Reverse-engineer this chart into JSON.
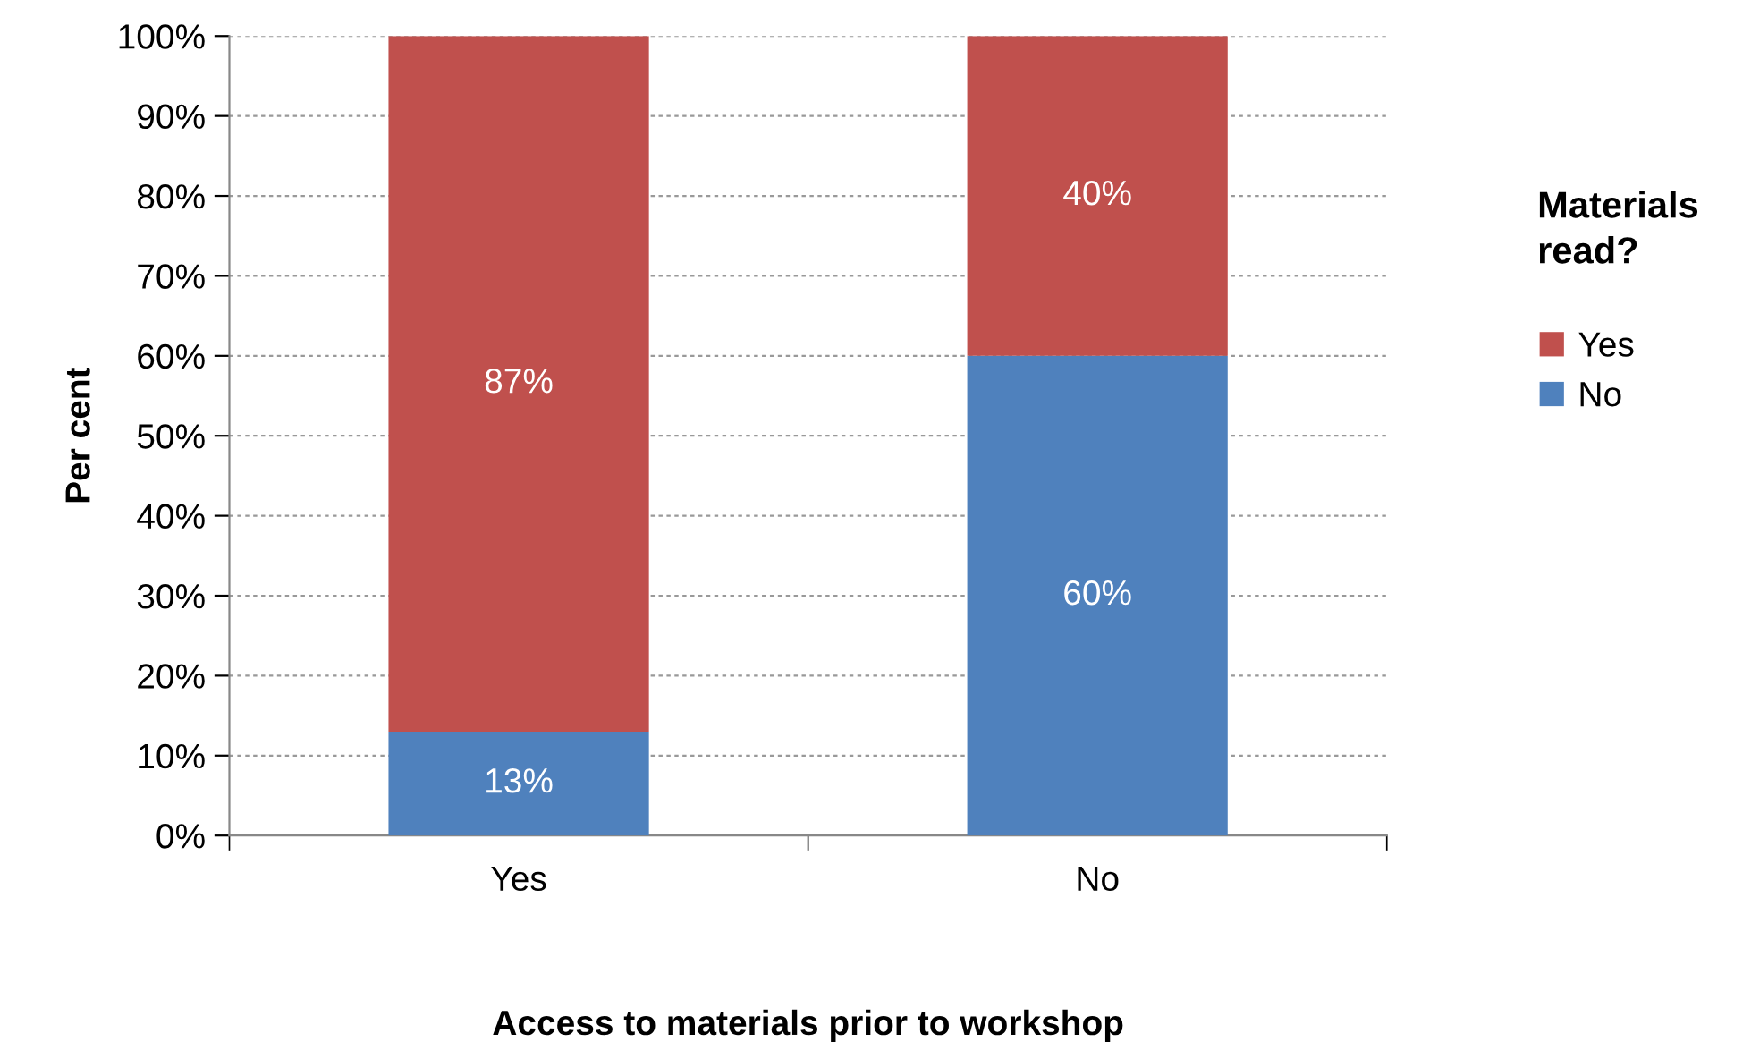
{
  "chart_data": {
    "type": "bar",
    "stacked": true,
    "xlabel": "Access to materials prior to workshop",
    "ylabel": "Per cent",
    "legend_title": "Materials read?",
    "categories": [
      "Yes",
      "No"
    ],
    "series": [
      {
        "name": "No",
        "color": "#4f81bd",
        "values": [
          13,
          60
        ],
        "value_labels": [
          "13%",
          "60%"
        ]
      },
      {
        "name": "Yes",
        "color": "#c0504d",
        "values": [
          87,
          40
        ],
        "value_labels": [
          "87%",
          "40%"
        ]
      }
    ],
    "ylim": [
      0,
      100
    ],
    "yticks": [
      {
        "value": 0,
        "label": "0%"
      },
      {
        "value": 10,
        "label": "10%"
      },
      {
        "value": 20,
        "label": "20%"
      },
      {
        "value": 30,
        "label": "30%"
      },
      {
        "value": 40,
        "label": "40%"
      },
      {
        "value": 50,
        "label": "50%"
      },
      {
        "value": 60,
        "label": "60%"
      },
      {
        "value": 70,
        "label": "70%"
      },
      {
        "value": 80,
        "label": "80%"
      },
      {
        "value": 90,
        "label": "90%"
      },
      {
        "value": 100,
        "label": "100%"
      }
    ],
    "grid": "y",
    "legend": "right"
  }
}
